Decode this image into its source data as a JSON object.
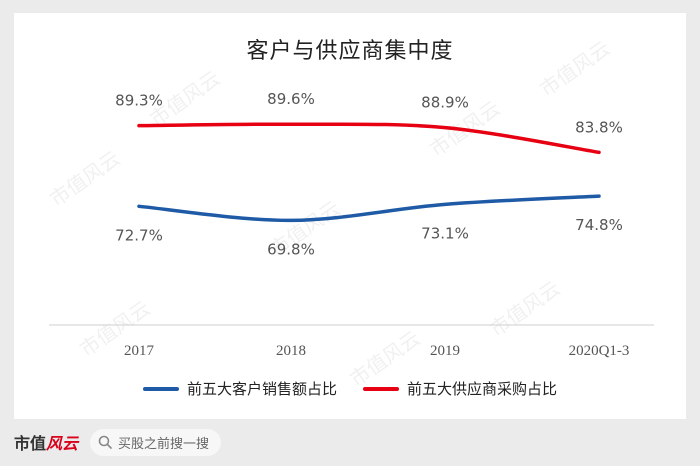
{
  "chart_data": {
    "type": "line",
    "title": "客户与供应商集中度",
    "categories": [
      "2017",
      "2018",
      "2019",
      "2020Q1-3"
    ],
    "series": [
      {
        "name": "前五大客户销售额占比",
        "values": [
          72.7,
          69.8,
          73.1,
          74.8
        ],
        "labels": [
          "72.7%",
          "69.8%",
          "73.1%",
          "74.8%"
        ],
        "color": "#1f5aa6"
      },
      {
        "name": "前五大供应商采购占比",
        "values": [
          89.3,
          89.6,
          88.9,
          83.8
        ],
        "labels": [
          "89.3%",
          "89.6%",
          "88.9%",
          "83.8%"
        ],
        "color": "#e60012"
      }
    ],
    "xlabel": "",
    "ylabel": "",
    "grid": false,
    "legend": "bottom"
  },
  "watermark": "市值风云",
  "footer": {
    "brand_prefix": "市值",
    "brand_suffix": "风云",
    "search_placeholder": "买股之前搜一搜"
  }
}
